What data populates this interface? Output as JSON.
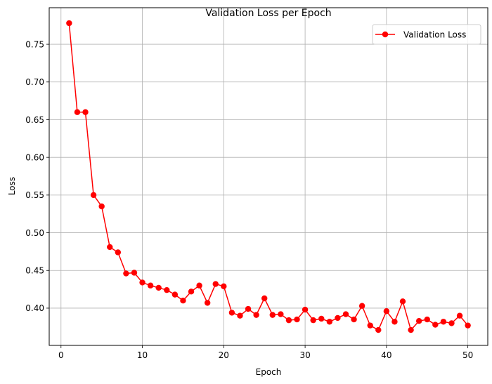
{
  "chart_data": {
    "type": "line",
    "title": "Validation Loss per Epoch",
    "xlabel": "Epoch",
    "ylabel": "Loss",
    "xlim": [
      -1.45,
      52.45
    ],
    "ylim": [
      0.3506,
      0.7985
    ],
    "xticks": [
      0,
      10,
      20,
      30,
      40,
      50
    ],
    "yticks": [
      0.4,
      0.45,
      0.5,
      0.55,
      0.6,
      0.65,
      0.7,
      0.75
    ],
    "grid": true,
    "legend_position": "top-right",
    "series": [
      {
        "name": "Validation Loss",
        "color": "#ff0000",
        "marker": "circle",
        "x": [
          1,
          2,
          3,
          4,
          5,
          6,
          7,
          8,
          9,
          10,
          11,
          12,
          13,
          14,
          15,
          16,
          17,
          18,
          19,
          20,
          21,
          22,
          23,
          24,
          25,
          26,
          27,
          28,
          29,
          30,
          31,
          32,
          33,
          34,
          35,
          36,
          37,
          38,
          39,
          40,
          41,
          42,
          43,
          44,
          45,
          46,
          47,
          48,
          49,
          50
        ],
        "y": [
          0.778,
          0.66,
          0.66,
          0.55,
          0.535,
          0.481,
          0.474,
          0.446,
          0.447,
          0.434,
          0.43,
          0.427,
          0.424,
          0.418,
          0.41,
          0.422,
          0.43,
          0.407,
          0.432,
          0.429,
          0.394,
          0.39,
          0.399,
          0.391,
          0.413,
          0.391,
          0.392,
          0.384,
          0.385,
          0.398,
          0.384,
          0.386,
          0.382,
          0.387,
          0.392,
          0.385,
          0.403,
          0.377,
          0.371,
          0.396,
          0.382,
          0.409,
          0.371,
          0.383,
          0.385,
          0.378,
          0.382,
          0.38,
          0.39,
          0.377
        ]
      }
    ]
  }
}
